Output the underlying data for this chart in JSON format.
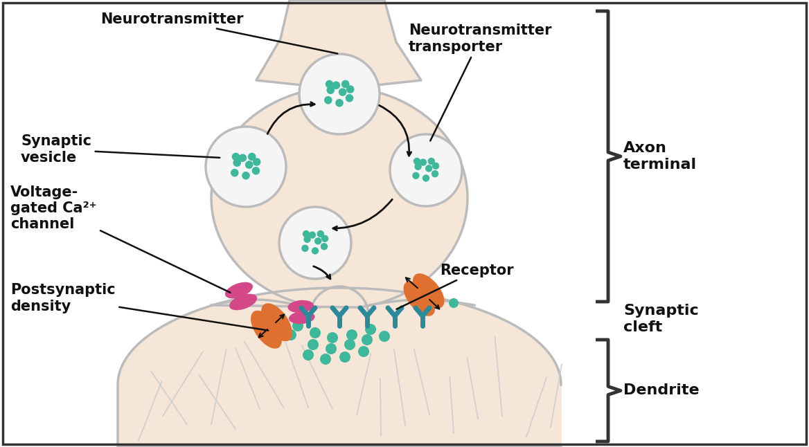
{
  "bg_color": "#ffffff",
  "cell_fill": "#f5e6d8",
  "cell_stroke": "#bbbbbb",
  "vesicle_fill": "#f5f5f5",
  "vesicle_stroke": "#bbbbbb",
  "dot_color": "#3db89a",
  "magenta_color": "#d4488a",
  "orange_color": "#e07030",
  "teal_color": "#2a8a9a",
  "text_color": "#111111",
  "border_color": "#333333",
  "fiber_color": "#cccccc",
  "labels": {
    "neurotransmitter": "Neurotransmitter",
    "synaptic_vesicle": "Synaptic\nvesicle",
    "voltage_gated": "Voltage-\ngated Ca²⁺\nchannel",
    "nt_transporter": "Neurotransmitter\ntransporter",
    "receptor": "Receptor",
    "postsynaptic_density": "Postsynaptic\ndensity",
    "axon_terminal": "Axon\nterminal",
    "synaptic_cleft": "Synaptic\ncleft",
    "dendrite": "Dendrite"
  }
}
